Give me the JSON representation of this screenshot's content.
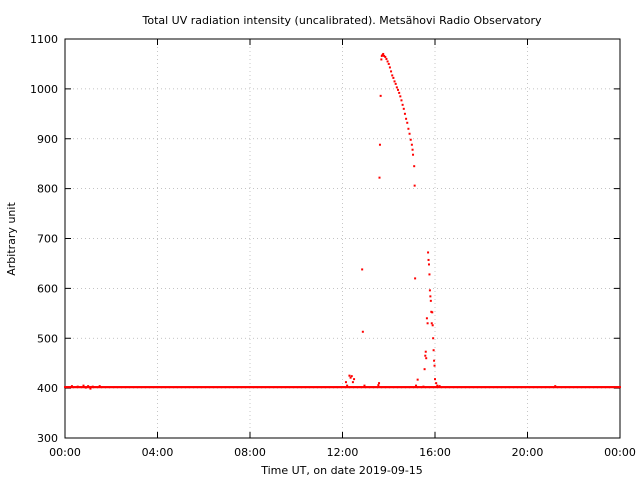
{
  "chart_data": {
    "type": "scatter",
    "title": "Total UV radiation intensity (uncalibrated). Metsähovi Radio Observatory",
    "xlabel": "Time UT, on date 2019-09-15",
    "ylabel": "Arbitrary unit",
    "xlim": [
      0,
      24
    ],
    "ylim": [
      300,
      1100
    ],
    "xticks": [
      {
        "value": 0,
        "label": "00:00"
      },
      {
        "value": 4,
        "label": "04:00"
      },
      {
        "value": 8,
        "label": "08:00"
      },
      {
        "value": 12,
        "label": "12:00"
      },
      {
        "value": 16,
        "label": "16:00"
      },
      {
        "value": 20,
        "label": "20:00"
      },
      {
        "value": 24,
        "label": "00:00"
      }
    ],
    "yticks": [
      300,
      400,
      500,
      600,
      700,
      800,
      900,
      1000,
      1100
    ],
    "grid": true,
    "marker_color": "#ff0000",
    "baseline": {
      "value": 402,
      "x_start": 0,
      "x_end": 24,
      "step": 0.04
    },
    "series": [
      {
        "points": [
          [
            0.3,
            404
          ],
          [
            0.55,
            403
          ],
          [
            0.8,
            405
          ],
          [
            0.9,
            401
          ],
          [
            1.0,
            404
          ],
          [
            1.1,
            399
          ],
          [
            1.2,
            403
          ],
          [
            1.5,
            404
          ],
          [
            12.15,
            412
          ],
          [
            12.2,
            405
          ],
          [
            12.3,
            425
          ],
          [
            12.35,
            421
          ],
          [
            12.4,
            424
          ],
          [
            12.45,
            412
          ],
          [
            12.5,
            418
          ],
          [
            12.85,
            638
          ],
          [
            12.88,
            513
          ],
          [
            12.95,
            405
          ],
          [
            13.55,
            406
          ],
          [
            13.58,
            410
          ],
          [
            13.6,
            822
          ],
          [
            13.62,
            888
          ],
          [
            13.65,
            986
          ],
          [
            13.68,
            1059
          ],
          [
            13.7,
            1066
          ],
          [
            13.73,
            1068
          ],
          [
            13.76,
            1070
          ],
          [
            13.8,
            1066
          ],
          [
            13.85,
            1064
          ],
          [
            13.9,
            1060
          ],
          [
            13.95,
            1055
          ],
          [
            14.0,
            1050
          ],
          [
            14.05,
            1043
          ],
          [
            14.1,
            1035
          ],
          [
            14.15,
            1027
          ],
          [
            14.2,
            1022
          ],
          [
            14.25,
            1015
          ],
          [
            14.3,
            1010
          ],
          [
            14.35,
            1003
          ],
          [
            14.4,
            998
          ],
          [
            14.45,
            992
          ],
          [
            14.5,
            985
          ],
          [
            14.55,
            977
          ],
          [
            14.6,
            968
          ],
          [
            14.65,
            960
          ],
          [
            14.7,
            950
          ],
          [
            14.75,
            940
          ],
          [
            14.8,
            932
          ],
          [
            14.85,
            920
          ],
          [
            14.9,
            910
          ],
          [
            14.95,
            898
          ],
          [
            15.0,
            888
          ],
          [
            15.03,
            878
          ],
          [
            15.05,
            868
          ],
          [
            15.1,
            845
          ],
          [
            15.12,
            806
          ],
          [
            15.14,
            620
          ],
          [
            15.18,
            405
          ],
          [
            15.25,
            417
          ],
          [
            15.5,
            403
          ],
          [
            15.55,
            438
          ],
          [
            15.58,
            465
          ],
          [
            15.6,
            473
          ],
          [
            15.62,
            460
          ],
          [
            15.65,
            540
          ],
          [
            15.68,
            530
          ],
          [
            15.7,
            672
          ],
          [
            15.72,
            657
          ],
          [
            15.74,
            648
          ],
          [
            15.76,
            628
          ],
          [
            15.78,
            596
          ],
          [
            15.8,
            584
          ],
          [
            15.82,
            575
          ],
          [
            15.84,
            553
          ],
          [
            15.86,
            530
          ],
          [
            15.88,
            552
          ],
          [
            15.9,
            526
          ],
          [
            15.92,
            500
          ],
          [
            15.94,
            476
          ],
          [
            15.96,
            455
          ],
          [
            15.98,
            445
          ],
          [
            16.0,
            418
          ],
          [
            16.05,
            410
          ],
          [
            16.1,
            405
          ],
          [
            16.2,
            404
          ],
          [
            21.2,
            404
          ]
        ]
      }
    ]
  }
}
